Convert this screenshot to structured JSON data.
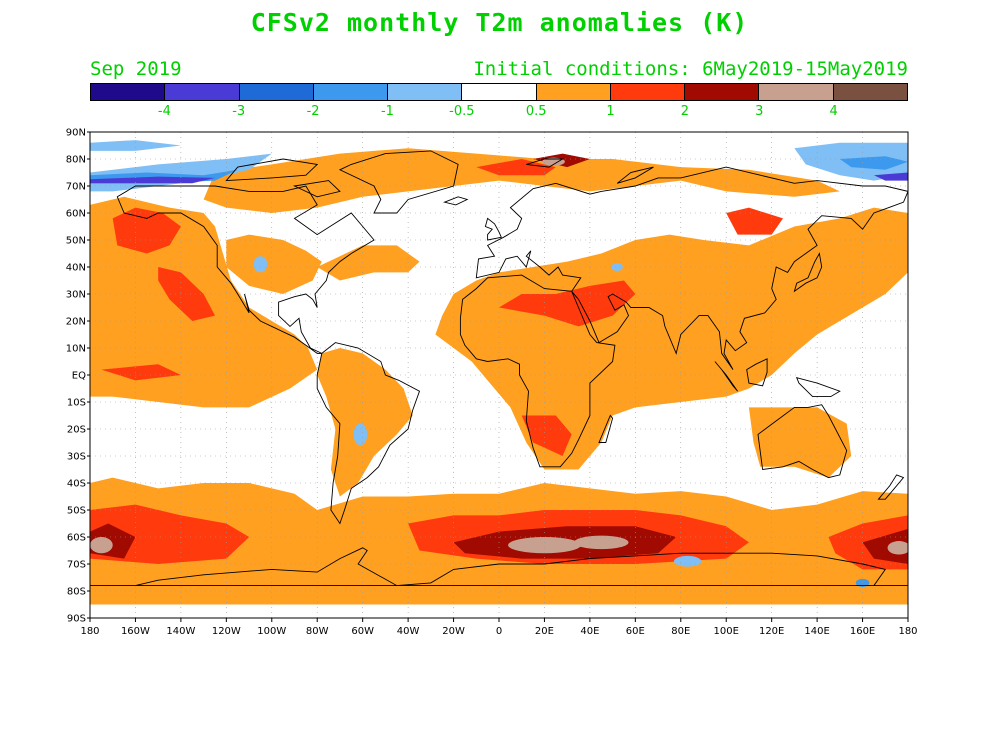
{
  "header": {
    "title": "CFSv2 monthly T2m anomalies (K)",
    "month_label": "Sep 2019",
    "init_label": "Initial conditions: 6May2019-15May2019",
    "text_color": "#00d000"
  },
  "legend": {
    "colors": [
      "#1f0a8c",
      "#4a3bd6",
      "#1e6ad6",
      "#3d99ee",
      "#7fbff5",
      "#ffffff",
      "#ffa020",
      "#ff3a0c",
      "#a00a00",
      "#c8a090",
      "#7a5040"
    ],
    "labels": [
      "-4",
      "-3",
      "-2",
      "-1",
      "-0.5",
      "0.5",
      "1",
      "2",
      "3",
      "4"
    ]
  },
  "map": {
    "lat_labels": [
      "90N",
      "80N",
      "70N",
      "60N",
      "50N",
      "40N",
      "30N",
      "20N",
      "10N",
      "EQ",
      "10S",
      "20S",
      "30S",
      "40S",
      "50S",
      "60S",
      "70S",
      "80S",
      "90S"
    ],
    "lon_labels": [
      "180",
      "160W",
      "140W",
      "120W",
      "100W",
      "80W",
      "60W",
      "40W",
      "20W",
      "0",
      "20E",
      "40E",
      "60E",
      "80E",
      "100E",
      "120E",
      "140E",
      "160E",
      "180"
    ],
    "projection": "cylindrical equidistant, 180W–180E, 90S–90N",
    "grid": "dotted gray every 10°",
    "colors": {
      "warm_05_1": "#ffa020",
      "warm_1_2": "#ff3a0c",
      "warm_2_3": "#a00a00",
      "warm_3_4": "#c8a090",
      "cold_05_1": "#7fbff5",
      "cold_1_2": "#3d99ee",
      "cold_2_3": "#1e6ad6",
      "cold_3_4": "#4a3bd6",
      "cold_4": "#1f0a8c",
      "coast": "#000000",
      "grid": "#9a9a9a"
    }
  }
}
